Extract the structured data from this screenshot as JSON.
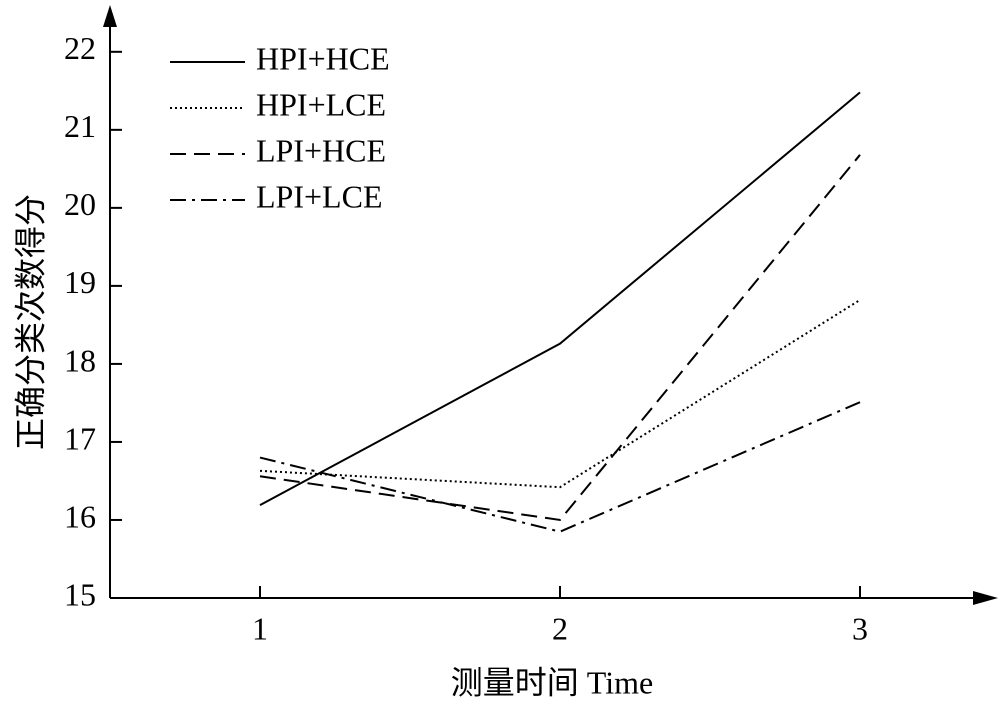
{
  "chart_data": {
    "type": "line",
    "x_label": "测量时间 Time",
    "y_label": "正确分类次数得分",
    "x": [
      1,
      2,
      3
    ],
    "xlim": [
      0.5,
      3.45
    ],
    "xticks": [
      1,
      2,
      3
    ],
    "ylim": [
      15,
      22.6
    ],
    "yticks": [
      15,
      16,
      17,
      18,
      19,
      20,
      21,
      22
    ],
    "legend": "upper-left",
    "series": [
      {
        "name": "HPI+HCE",
        "color": "#000000",
        "dash": "solid",
        "values": [
          16.19,
          18.26,
          21.48
        ]
      },
      {
        "name": "HPI+LCE",
        "color": "#000000",
        "dash": "dotted",
        "values": [
          16.63,
          16.42,
          18.82
        ]
      },
      {
        "name": "LPI+HCE",
        "color": "#000000",
        "dash": "dashed",
        "values": [
          16.56,
          16.0,
          20.68
        ]
      },
      {
        "name": "LPI+LCE",
        "color": "#000000",
        "dash": "dashdot",
        "values": [
          16.8,
          15.85,
          17.51
        ]
      }
    ]
  }
}
